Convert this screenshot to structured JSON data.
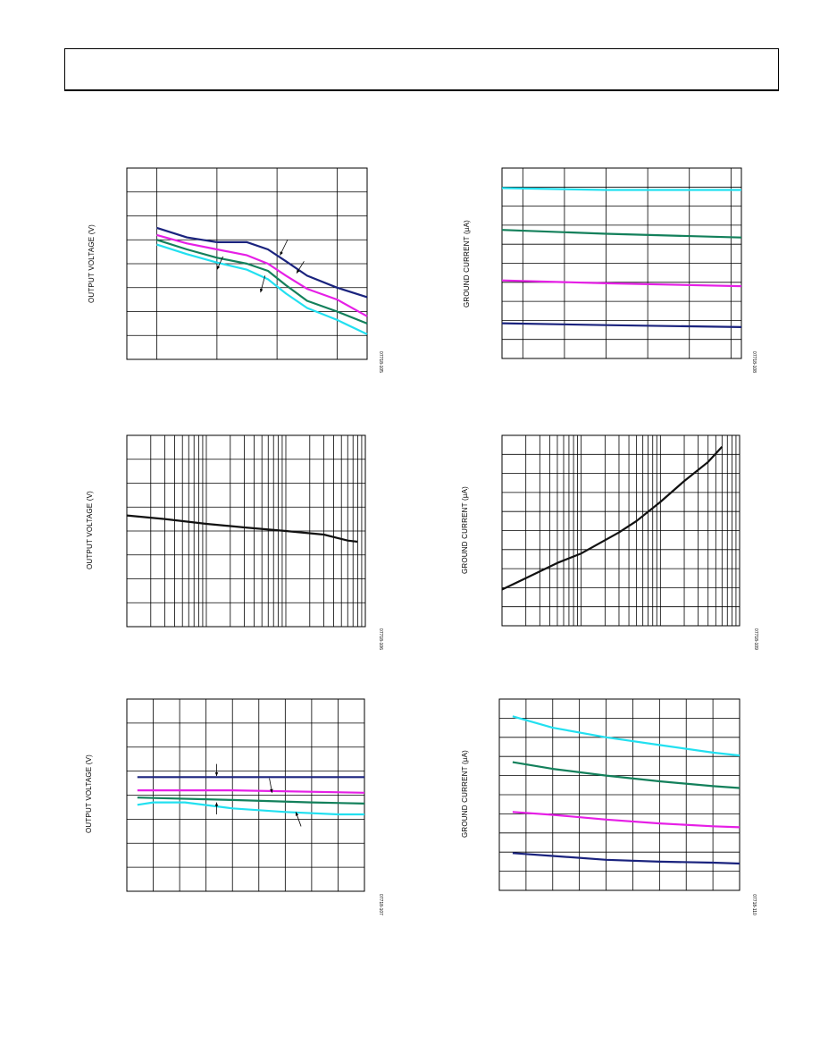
{
  "page": {
    "header_text": ""
  },
  "charts": [
    {
      "id": "c1",
      "panel_type": "multi-line",
      "ylabel": "OUTPUT VOLTAGE (V)",
      "fig_id": "07718-105",
      "xscale": "linear",
      "ylim": [
        0,
        8
      ],
      "xlim": [
        0,
        8
      ],
      "gridlines_x": [
        1,
        3,
        5,
        7,
        8
      ],
      "gridlines_y": [
        1,
        2,
        3,
        4,
        5,
        6,
        7
      ],
      "annotation_arrows": [
        {
          "from": [
            5.35,
            5.0
          ],
          "to": [
            5.1,
            4.35
          ]
        },
        {
          "from": [
            3.2,
            4.3
          ],
          "to": [
            3.0,
            3.75
          ]
        },
        {
          "from": [
            5.9,
            4.1
          ],
          "to": [
            5.65,
            3.6
          ]
        },
        {
          "from": [
            4.6,
            3.5
          ],
          "to": [
            4.45,
            2.8
          ]
        }
      ],
      "series": [
        {
          "color": "#1a237e",
          "points": [
            [
              1,
              5.5
            ],
            [
              2,
              5.1
            ],
            [
              3,
              4.9
            ],
            [
              4,
              4.9
            ],
            [
              4.7,
              4.6
            ],
            [
              5.3,
              4.1
            ],
            [
              6,
              3.5
            ],
            [
              7,
              3.0
            ],
            [
              8,
              2.6
            ]
          ]
        },
        {
          "color": "#e61fe6",
          "points": [
            [
              1,
              5.2
            ],
            [
              2,
              4.85
            ],
            [
              3,
              4.6
            ],
            [
              4,
              4.35
            ],
            [
              4.7,
              4.0
            ],
            [
              5.3,
              3.5
            ],
            [
              6,
              2.95
            ],
            [
              7,
              2.5
            ],
            [
              8,
              1.8
            ]
          ]
        },
        {
          "color": "#13805b",
          "points": [
            [
              1,
              5.0
            ],
            [
              2,
              4.6
            ],
            [
              3,
              4.25
            ],
            [
              4,
              4.0
            ],
            [
              4.7,
              3.7
            ],
            [
              5.3,
              3.1
            ],
            [
              6,
              2.45
            ],
            [
              7,
              2.0
            ],
            [
              8,
              1.5
            ]
          ]
        },
        {
          "color": "#22e0f0",
          "points": [
            [
              1,
              4.8
            ],
            [
              2,
              4.4
            ],
            [
              3,
              4.05
            ],
            [
              4,
              3.75
            ],
            [
              4.7,
              3.35
            ],
            [
              5.3,
              2.75
            ],
            [
              6,
              2.15
            ],
            [
              7,
              1.65
            ],
            [
              8,
              1.05
            ]
          ]
        }
      ]
    },
    {
      "id": "c2",
      "panel_type": "multi-line",
      "ylabel": "GROUND CURRENT (µA)",
      "fig_id": "07718-108",
      "xscale": "linear",
      "ylim": [
        0,
        10
      ],
      "xlim": [
        0,
        11.5
      ],
      "gridlines_x": [
        1,
        3,
        5,
        7,
        9,
        11
      ],
      "gridlines_y": [
        1,
        2,
        3,
        4,
        5,
        6,
        7,
        8,
        9
      ],
      "annotation_arrows": [],
      "series": [
        {
          "color": "#22e0f0",
          "points": [
            [
              0,
              8.95
            ],
            [
              5,
              8.85
            ],
            [
              11.5,
              8.85
            ]
          ]
        },
        {
          "color": "#13805b",
          "points": [
            [
              0,
              6.75
            ],
            [
              5,
              6.55
            ],
            [
              11.5,
              6.35
            ]
          ]
        },
        {
          "color": "#e61fe6",
          "points": [
            [
              0,
              4.1
            ],
            [
              5,
              3.95
            ],
            [
              11.5,
              3.8
            ]
          ]
        },
        {
          "color": "#1a237e",
          "points": [
            [
              0,
              1.85
            ],
            [
              5,
              1.75
            ],
            [
              11.5,
              1.65
            ]
          ]
        }
      ]
    },
    {
      "id": "c3",
      "panel_type": "single-line",
      "ylabel": "OUTPUT VOLTAGE (V)",
      "fig_id": "07718-106",
      "xscale": "log",
      "ylim": [
        0,
        8
      ],
      "xlim": [
        1,
        1000
      ],
      "gridlines_x": [
        2,
        3,
        4,
        5,
        6,
        7,
        8,
        9,
        10,
        20,
        30,
        40,
        50,
        60,
        70,
        80,
        90,
        100,
        200,
        300,
        400,
        500,
        600,
        700,
        800,
        900
      ],
      "gridlines_y": [
        1,
        2,
        3,
        4,
        5,
        6,
        7
      ],
      "annotation_arrows": [],
      "series": [
        {
          "color": "#111111",
          "points": [
            [
              1,
              4.65
            ],
            [
              3,
              4.5
            ],
            [
              10,
              4.3
            ],
            [
              30,
              4.15
            ],
            [
              100,
              4.0
            ],
            [
              300,
              3.85
            ],
            [
              600,
              3.6
            ],
            [
              800,
              3.55
            ]
          ]
        }
      ]
    },
    {
      "id": "c4",
      "panel_type": "single-line",
      "ylabel": "GROUND CURRENT (µA)",
      "fig_id": "07718-109",
      "xscale": "log",
      "ylim": [
        0,
        10
      ],
      "xlim": [
        1,
        1000
      ],
      "gridlines_x": [
        2,
        3,
        4,
        5,
        6,
        7,
        8,
        9,
        10,
        20,
        30,
        40,
        50,
        60,
        70,
        80,
        90,
        100,
        200,
        300,
        400,
        500,
        600,
        700,
        800,
        900
      ],
      "gridlines_y": [
        1,
        2,
        3,
        4,
        5,
        6,
        7,
        8,
        9
      ],
      "annotation_arrows": [],
      "series": [
        {
          "color": "#111111",
          "points": [
            [
              1,
              1.9
            ],
            [
              2,
              2.5
            ],
            [
              5,
              3.3
            ],
            [
              10,
              3.8
            ],
            [
              30,
              4.9
            ],
            [
              50,
              5.5
            ],
            [
              100,
              6.5
            ],
            [
              200,
              7.6
            ],
            [
              400,
              8.6
            ],
            [
              600,
              9.4
            ]
          ]
        }
      ]
    },
    {
      "id": "c5",
      "panel_type": "multi-line",
      "ylabel": "OUTPUT VOLTAGE (V)",
      "fig_id": "07718-107",
      "xscale": "linear",
      "ylim": [
        0,
        8
      ],
      "xlim": [
        0,
        9
      ],
      "gridlines_x": [
        1,
        2,
        3,
        4,
        5,
        6,
        7,
        8
      ],
      "gridlines_y": [
        1,
        2,
        3,
        4,
        5,
        6,
        7
      ],
      "annotation_arrows": [
        {
          "from": [
            3.4,
            5.3
          ],
          "to": [
            3.4,
            4.8
          ]
        },
        {
          "from": [
            5.4,
            4.7
          ],
          "to": [
            5.5,
            4.1
          ]
        },
        {
          "from": [
            3.4,
            3.2
          ],
          "to": [
            3.4,
            3.7
          ]
        },
        {
          "from": [
            6.6,
            2.7
          ],
          "to": [
            6.4,
            3.3
          ]
        }
      ],
      "series": [
        {
          "color": "#1a237e",
          "points": [
            [
              0.4,
              4.75
            ],
            [
              9,
              4.75
            ]
          ]
        },
        {
          "color": "#e61fe6",
          "points": [
            [
              0.4,
              4.2
            ],
            [
              4,
              4.2
            ],
            [
              9,
              4.1
            ]
          ]
        },
        {
          "color": "#13805b",
          "points": [
            [
              0.4,
              3.9
            ],
            [
              4,
              3.8
            ],
            [
              7,
              3.7
            ],
            [
              9,
              3.65
            ]
          ]
        },
        {
          "color": "#22e0f0",
          "points": [
            [
              0.4,
              3.6
            ],
            [
              1,
              3.7
            ],
            [
              2.2,
              3.7
            ],
            [
              4,
              3.45
            ],
            [
              6,
              3.3
            ],
            [
              8,
              3.2
            ],
            [
              9,
              3.2
            ]
          ]
        }
      ]
    },
    {
      "id": "c6",
      "panel_type": "multi-line",
      "ylabel": "GROUND CURRENT (µA)",
      "fig_id": "07718-110",
      "xscale": "linear",
      "ylim": [
        0,
        10
      ],
      "xlim": [
        0,
        9
      ],
      "gridlines_x": [
        1,
        2,
        3,
        4,
        5,
        6,
        7,
        8
      ],
      "gridlines_y": [
        1,
        2,
        3,
        4,
        5,
        6,
        7,
        8,
        9
      ],
      "annotation_arrows": [],
      "series": [
        {
          "color": "#22e0f0",
          "points": [
            [
              0.5,
              9.1
            ],
            [
              2,
              8.5
            ],
            [
              4,
              8.0
            ],
            [
              6,
              7.6
            ],
            [
              8,
              7.2
            ],
            [
              9,
              7.05
            ]
          ]
        },
        {
          "color": "#13805b",
          "points": [
            [
              0.5,
              6.7
            ],
            [
              2,
              6.35
            ],
            [
              4,
              6.0
            ],
            [
              6,
              5.7
            ],
            [
              8,
              5.45
            ],
            [
              9,
              5.35
            ]
          ]
        },
        {
          "color": "#e61fe6",
          "points": [
            [
              0.5,
              4.1
            ],
            [
              2,
              3.95
            ],
            [
              4,
              3.7
            ],
            [
              6,
              3.5
            ],
            [
              8,
              3.35
            ],
            [
              9,
              3.3
            ]
          ]
        },
        {
          "color": "#1a237e",
          "points": [
            [
              0.5,
              1.95
            ],
            [
              2,
              1.8
            ],
            [
              4,
              1.6
            ],
            [
              6,
              1.5
            ],
            [
              8,
              1.45
            ],
            [
              9,
              1.4
            ]
          ]
        }
      ]
    }
  ]
}
